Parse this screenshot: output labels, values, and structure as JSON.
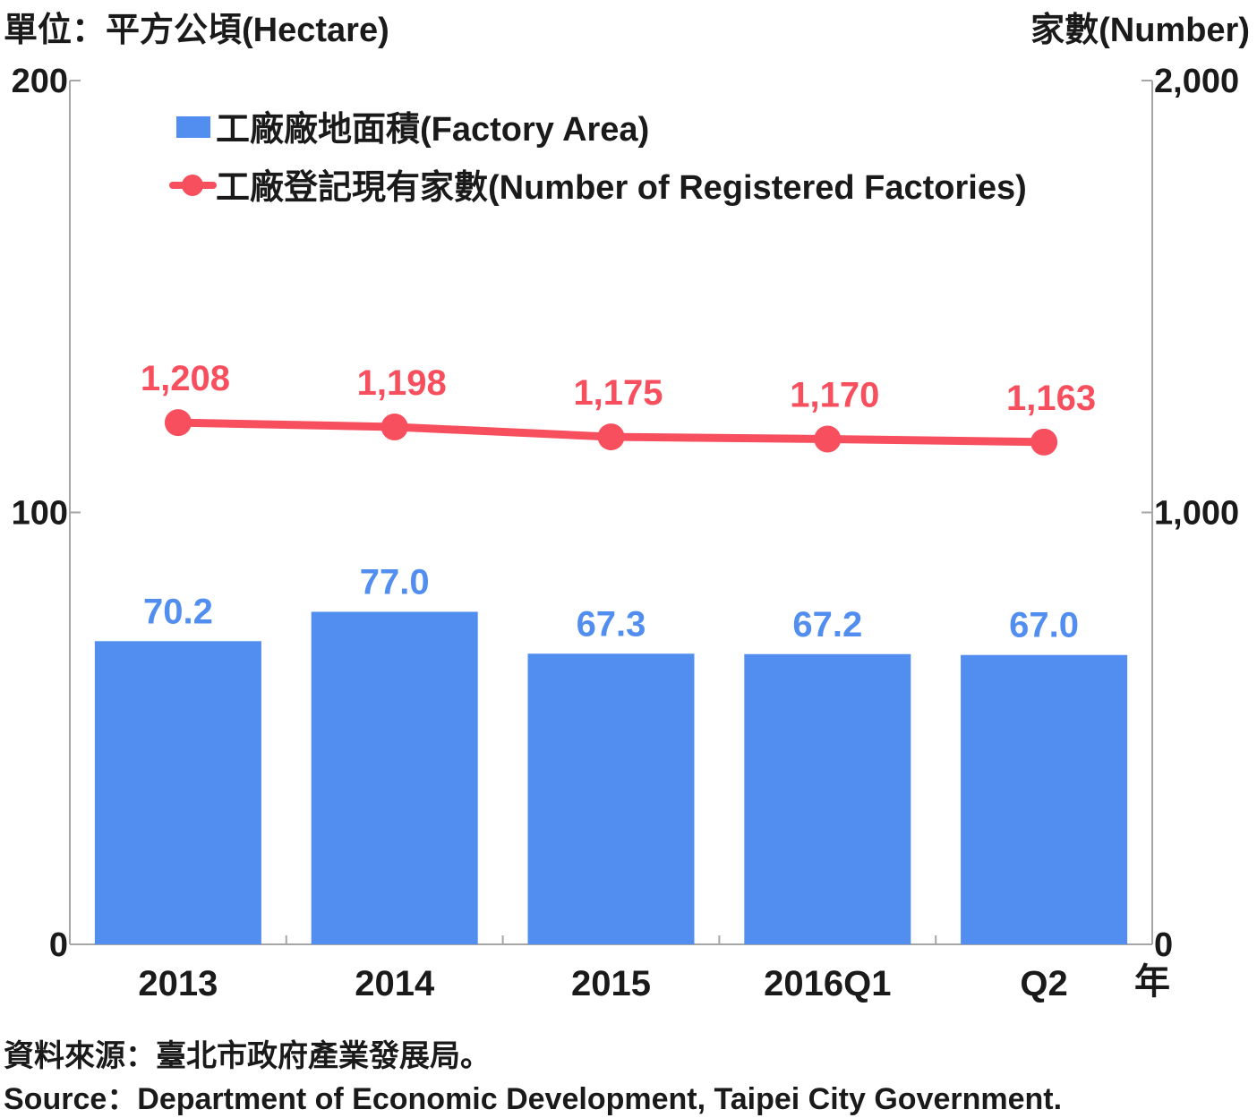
{
  "chart_data": {
    "type": "bar",
    "categories": [
      "2013",
      "2014",
      "2015",
      "2016Q1",
      "Q2"
    ],
    "x_unit_label": "年",
    "series": [
      {
        "name": "工廠廠地面積(Factory Area)",
        "type": "bar",
        "axis": "left",
        "color": "#518ef0",
        "values": [
          70.2,
          77.0,
          67.3,
          67.2,
          67.0
        ],
        "labels": [
          "70.2",
          "77.0",
          "67.3",
          "67.2",
          "67.0"
        ]
      },
      {
        "name": "工廠登記現有家數(Number of Registered Factories)",
        "type": "line",
        "axis": "right",
        "color": "#f84f5f",
        "values": [
          1208,
          1198,
          1175,
          1170,
          1163
        ],
        "labels": [
          "1,208",
          "1,198",
          "1,175",
          "1,170",
          "1,163"
        ]
      }
    ],
    "y_left": {
      "label": "單位：平方公頃(Hectare)",
      "ylim": [
        0,
        200
      ],
      "ticks": [
        0,
        100,
        200
      ],
      "tick_labels": [
        "0",
        "100",
        "200"
      ]
    },
    "y_right": {
      "label": "家數(Number)",
      "ylim": [
        0,
        2000
      ],
      "ticks": [
        0,
        1000,
        2000
      ],
      "tick_labels": [
        "0",
        "1,000",
        "2,000"
      ]
    },
    "grid": false,
    "legend_position": "top-left"
  },
  "source": {
    "zh": "資料來源：臺北市政府產業發展局。",
    "en": "Source：Department of Economic Development, Taipei City Government."
  },
  "colors": {
    "bar": "#518ef0",
    "line": "#f84f5f",
    "axis": "#a6a6a6",
    "text": "#1a1a1a"
  }
}
